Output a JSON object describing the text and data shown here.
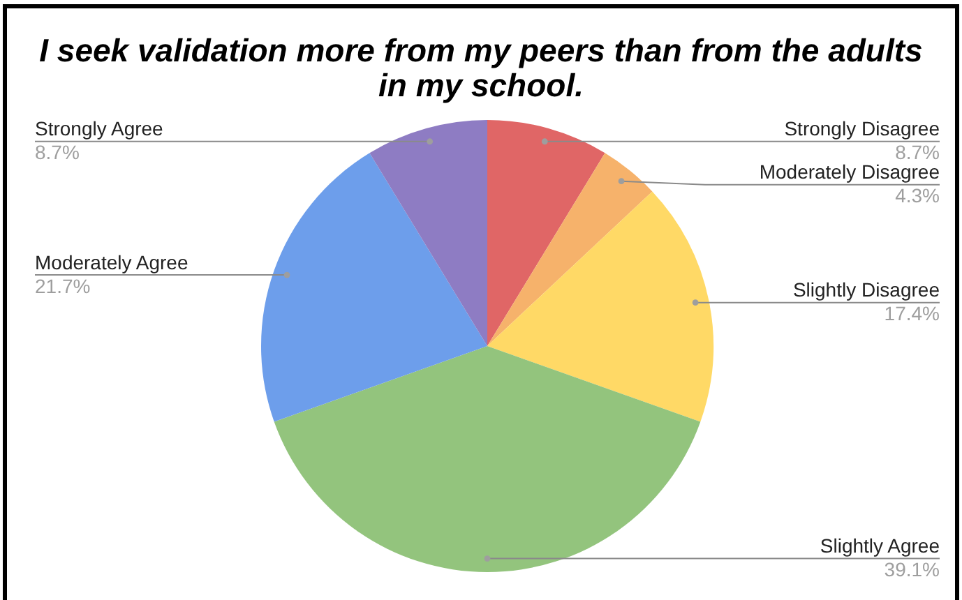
{
  "chart_data": {
    "type": "pie",
    "title": "I seek validation more from my peers than from the adults in my school.",
    "categories": [
      "Strongly Disagree",
      "Moderately Disagree",
      "Slightly Disagree",
      "Slightly Agree",
      "Moderately Agree",
      "Strongly Agree"
    ],
    "values": [
      8.7,
      4.3,
      17.4,
      39.1,
      21.7,
      8.7
    ],
    "colors": [
      "#e06666",
      "#f6b26b",
      "#ffd966",
      "#93c47d",
      "#6d9eeb",
      "#8e7cc3"
    ],
    "value_labels": [
      "8.7%",
      "4.3%",
      "17.4%",
      "39.1%",
      "21.7%",
      "8.7%"
    ]
  }
}
